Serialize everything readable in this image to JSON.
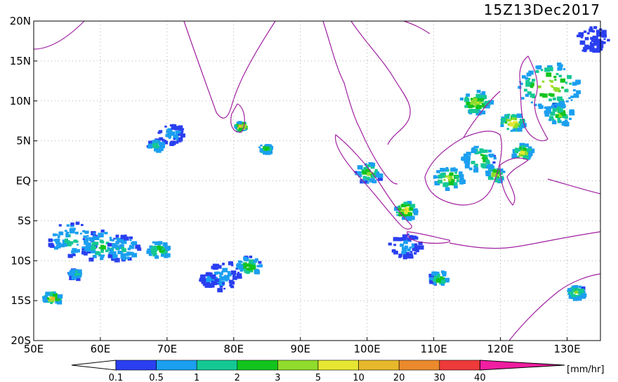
{
  "map": {
    "title": "15Z13Dec2017",
    "lat_labels": [
      "20N",
      "15N",
      "10N",
      "5N",
      "EQ",
      "5S",
      "10S",
      "15S",
      "20S"
    ],
    "lon_labels": [
      "50E",
      "60E",
      "70E",
      "80E",
      "90E",
      "100E",
      "110E",
      "120E",
      "130E"
    ],
    "extent": {
      "lon_min": 50,
      "lon_max": 135,
      "lat_min": -20,
      "lat_max": 20
    },
    "coastline_color": "#a020a0",
    "grid": true
  },
  "colorbar": {
    "unit": "[mm/hr]",
    "ticks": [
      "0.1",
      "0.5",
      "1",
      "2",
      "3",
      "5",
      "10",
      "20",
      "30",
      "40"
    ],
    "colors": [
      "#2a3ff0",
      "#1b9ff0",
      "#14c894",
      "#12c41e",
      "#8fdc2c",
      "#e6e632",
      "#e8b82c",
      "#ea8a2c",
      "#ee3a3a",
      "#f01ea0"
    ]
  },
  "rain_cells": [
    {
      "lon": 55.5,
      "lat": -7.2,
      "r": 2.5,
      "level": 2
    },
    {
      "lon": 60.0,
      "lat": -8.0,
      "r": 2.2,
      "level": 3
    },
    {
      "lon": 63.0,
      "lat": -8.3,
      "r": 1.8,
      "level": 2
    },
    {
      "lon": 68.5,
      "lat": -8.5,
      "r": 1.2,
      "level": 4
    },
    {
      "lon": 52.5,
      "lat": -14.5,
      "r": 0.9,
      "level": 6
    },
    {
      "lon": 70.5,
      "lat": 6.0,
      "r": 1.4,
      "level": 1
    },
    {
      "lon": 68.0,
      "lat": 4.6,
      "r": 0.8,
      "level": 3
    },
    {
      "lon": 78.0,
      "lat": -11.7,
      "r": 2.0,
      "level": 1
    },
    {
      "lon": 82.0,
      "lat": -10.5,
      "r": 1.3,
      "level": 4
    },
    {
      "lon": 80.8,
      "lat": 7.0,
      "r": 0.6,
      "level": 7
    },
    {
      "lon": 84.5,
      "lat": 4.2,
      "r": 0.6,
      "level": 4
    },
    {
      "lon": 100.0,
      "lat": 1.2,
      "r": 1.4,
      "level": 4
    },
    {
      "lon": 105.5,
      "lat": -3.5,
      "r": 1.2,
      "level": 6
    },
    {
      "lon": 112.0,
      "lat": 0.5,
      "r": 1.5,
      "level": 5
    },
    {
      "lon": 116.5,
      "lat": 3.0,
      "r": 1.8,
      "level": 4
    },
    {
      "lon": 119.0,
      "lat": 1.0,
      "r": 1.0,
      "level": 5
    },
    {
      "lon": 105.5,
      "lat": -8.0,
      "r": 1.7,
      "level": 1
    },
    {
      "lon": 110.5,
      "lat": -12.0,
      "r": 1.0,
      "level": 4
    },
    {
      "lon": 127.0,
      "lat": 12.0,
      "r": 3.3,
      "level": 5
    },
    {
      "lon": 128.5,
      "lat": 8.5,
      "r": 1.5,
      "level": 4
    },
    {
      "lon": 116.0,
      "lat": 10.0,
      "r": 1.6,
      "level": 5
    },
    {
      "lon": 121.5,
      "lat": 7.5,
      "r": 1.3,
      "level": 6
    },
    {
      "lon": 123.0,
      "lat": 3.8,
      "r": 1.1,
      "level": 5
    },
    {
      "lon": 131.0,
      "lat": -13.8,
      "r": 1.0,
      "level": 4
    },
    {
      "lon": 133.5,
      "lat": 17.8,
      "r": 1.8,
      "level": 0
    },
    {
      "lon": 76.0,
      "lat": -12.2,
      "r": 0.9,
      "level": 1
    },
    {
      "lon": 56.0,
      "lat": -11.5,
      "r": 0.7,
      "level": 3
    }
  ]
}
